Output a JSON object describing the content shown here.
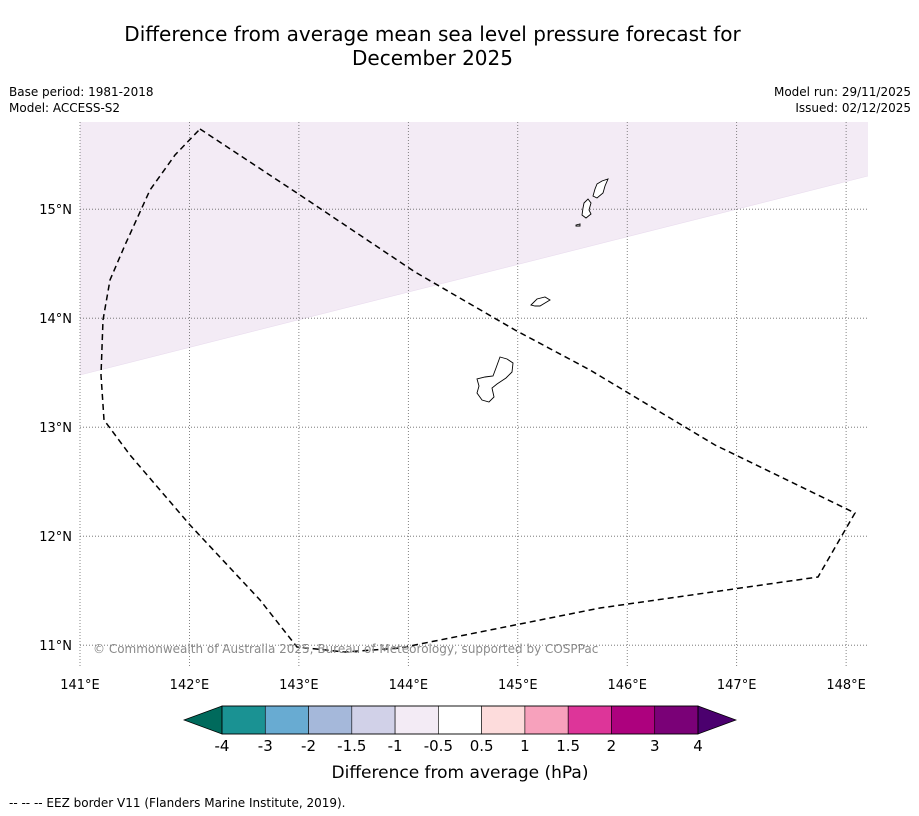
{
  "title_line1": "Difference from average mean sea level pressure forecast for",
  "title_line2": "December 2025",
  "meta": {
    "base_period": "Base period: 1981-2018",
    "model": "Model: ACCESS-S2",
    "model_run": "Model run: 29/11/2025",
    "issued": "Issued: 02/12/2025"
  },
  "map": {
    "lon_range": [
      141,
      148.2
    ],
    "lat_range": [
      10.8,
      15.8
    ],
    "lat_ticks": [
      {
        "v": 15,
        "label": "15°N"
      },
      {
        "v": 14,
        "label": "14°N"
      },
      {
        "v": 13,
        "label": "13°N"
      },
      {
        "v": 12,
        "label": "12°N"
      },
      {
        "v": 11,
        "label": "11°N"
      }
    ],
    "lon_ticks": [
      {
        "v": 141,
        "label": "141°E"
      },
      {
        "v": 142,
        "label": "142°E"
      },
      {
        "v": 143,
        "label": "143°E"
      },
      {
        "v": 144,
        "label": "144°E"
      },
      {
        "v": 145,
        "label": "145°E"
      },
      {
        "v": 146,
        "label": "146°E"
      },
      {
        "v": 147,
        "label": "147°E"
      },
      {
        "v": 148,
        "label": "148°E"
      }
    ],
    "copyright": "© Commonwealth of Australia 2025, Bureau of Meteorology, supported by COSPPac",
    "shaded_region_color": "#f3ebf5",
    "shaded_region_category": "-1 to -0.5"
  },
  "colorbar": {
    "label": "Difference from average (hPa)",
    "ticks": [
      "-4",
      "-3",
      "-2",
      "-1.5",
      "-1",
      "-0.5",
      "0.5",
      "1",
      "1.5",
      "2",
      "3",
      "4"
    ],
    "under_color": "#006a5c",
    "over_color": "#4b006e",
    "colors": [
      "#1a9293",
      "#68abd2",
      "#a5b8da",
      "#d1d1e8",
      "#f3ebf5",
      "#ffffff",
      "#fddcdc",
      "#f7a1bc",
      "#dd3599",
      "#ad017e",
      "#7a0177"
    ]
  },
  "footnote": "--  --  -- EEZ border V11 (Flanders Marine Institute, 2019)."
}
